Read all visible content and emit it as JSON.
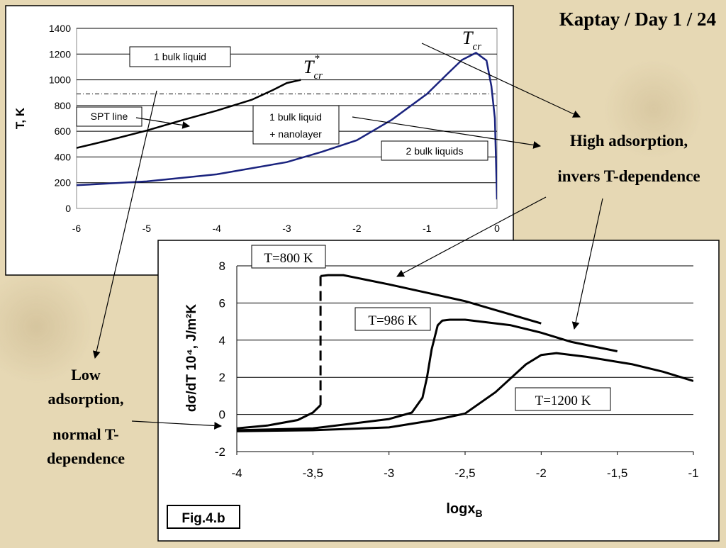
{
  "slide": {
    "title": "Kaptay / Day 1 / 24",
    "right_note": [
      "High adsorption,",
      "invers T-dependence"
    ],
    "left_note": [
      "Low",
      "adsorption,",
      "normal T-",
      "dependence"
    ],
    "fig_label": "Fig.4.b",
    "colors": {
      "background": "#e6d8b4",
      "blue_curve": "#1a237e",
      "black": "#000000"
    }
  },
  "chart_data": [
    {
      "type": "line",
      "title": "",
      "xlabel": "",
      "ylabel": "T, K",
      "xlim": [
        -6,
        0
      ],
      "ylim": [
        0,
        1400
      ],
      "x_ticks": [
        "-6",
        "-5",
        "-4",
        "-3",
        "-2",
        "-1",
        "0"
      ],
      "y_ticks": [
        "0",
        "200",
        "400",
        "600",
        "800",
        "1000",
        "1200",
        "1400"
      ],
      "grid": "horizontal",
      "annotations": {
        "box_1bulk": "1 bulk liquid",
        "box_spt": "SPT line",
        "box_nano": [
          "1 bulk liquid",
          "+ nanolayer"
        ],
        "box_2bulk": "2 bulk liquids",
        "tcr_star": {
          "base": "T",
          "sub": "cr",
          "sup": "*"
        },
        "tcr": {
          "base": "T",
          "sub": "cr"
        }
      },
      "reference_line_y": 890,
      "series": [
        {
          "id": "spt-line",
          "color": "#000000",
          "x": [
            -6,
            -5.5,
            -5,
            -4.5,
            -4,
            -3.5,
            -3.2,
            -3,
            -2.8
          ],
          "y": [
            470,
            535,
            605,
            685,
            760,
            845,
            920,
            975,
            1000
          ]
        },
        {
          "id": "binodal",
          "color": "#1a237e",
          "x": [
            -6,
            -5,
            -4,
            -3,
            -2.5,
            -2,
            -1.5,
            -1,
            -0.7,
            -0.5,
            -0.3,
            -0.15,
            -0.08,
            -0.03,
            0
          ],
          "y": [
            180,
            210,
            265,
            360,
            440,
            530,
            690,
            890,
            1050,
            1155,
            1210,
            1150,
            950,
            700,
            70
          ]
        }
      ]
    },
    {
      "type": "line",
      "title": "",
      "xlabel": "logx",
      "xlabel_sub": "B",
      "ylabel": "dσ/dT 10⁴, J/m²K",
      "xlim": [
        -4,
        -1
      ],
      "ylim": [
        -2,
        8
      ],
      "x_ticks": [
        "-4",
        "-3,5",
        "-3",
        "-2,5",
        "-2",
        "-1,5",
        "-1"
      ],
      "y_ticks": [
        "-2",
        "0",
        "2",
        "4",
        "6",
        "8"
      ],
      "grid": "horizontal",
      "series": [
        {
          "name": "T=800 K",
          "x": [
            -4,
            -3.8,
            -3.6,
            -3.5,
            -3.45,
            -3.45,
            -3.4,
            -3.3,
            -3,
            -2.5,
            -2
          ],
          "y": [
            -0.75,
            -0.6,
            -0.3,
            0.1,
            0.5,
            7.45,
            7.5,
            7.5,
            7.0,
            6.1,
            4.9
          ],
          "dashed_segment": [
            4,
            5
          ]
        },
        {
          "name": "T=986 K",
          "x": [
            -4,
            -3.5,
            -3,
            -2.85,
            -2.78,
            -2.75,
            -2.72,
            -2.68,
            -2.65,
            -2.6,
            -2.5,
            -2.2,
            -2,
            -1.8,
            -1.5
          ],
          "y": [
            -0.85,
            -0.75,
            -0.25,
            0.1,
            0.9,
            2.0,
            3.5,
            4.8,
            5.05,
            5.1,
            5.1,
            4.8,
            4.4,
            3.9,
            3.4
          ]
        },
        {
          "name": "T=1200 K",
          "x": [
            -4,
            -3.5,
            -3,
            -2.7,
            -2.5,
            -2.3,
            -2.1,
            -2,
            -1.9,
            -1.7,
            -1.4,
            -1.2,
            -1
          ],
          "y": [
            -0.9,
            -0.85,
            -0.7,
            -0.3,
            0.05,
            1.2,
            2.7,
            3.2,
            3.3,
            3.1,
            2.7,
            2.3,
            1.8
          ]
        }
      ]
    }
  ]
}
